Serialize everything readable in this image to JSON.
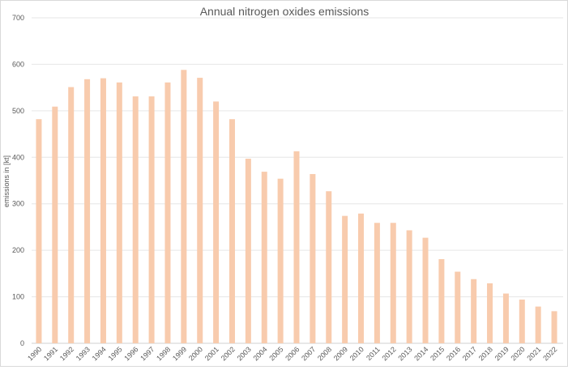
{
  "chart_data": {
    "type": "bar",
    "title": "Annual nitrogen oxides emissions",
    "xlabel": "",
    "ylabel": "emissions in [kt]",
    "ylim": [
      0,
      700
    ],
    "yticks": [
      0,
      100,
      200,
      300,
      400,
      500,
      600,
      700
    ],
    "grid": true,
    "bar_color": "#F8CBAD",
    "categories": [
      "1990",
      "1991",
      "1992",
      "1993",
      "1994",
      "1995",
      "1996",
      "1997",
      "1998",
      "1999",
      "2000",
      "2001",
      "2002",
      "2003",
      "2004",
      "2005",
      "2006",
      "2007",
      "2008",
      "2009",
      "2010",
      "2011",
      "2012",
      "2013",
      "2014",
      "2015",
      "2016",
      "2017",
      "2018",
      "2019",
      "2020",
      "2021",
      "2022"
    ],
    "values": [
      482,
      509,
      551,
      568,
      570,
      561,
      531,
      531,
      561,
      588,
      571,
      520,
      482,
      397,
      369,
      354,
      413,
      364,
      327,
      274,
      279,
      259,
      259,
      243,
      227,
      181,
      154,
      138,
      129,
      107,
      94,
      79,
      69
    ]
  }
}
